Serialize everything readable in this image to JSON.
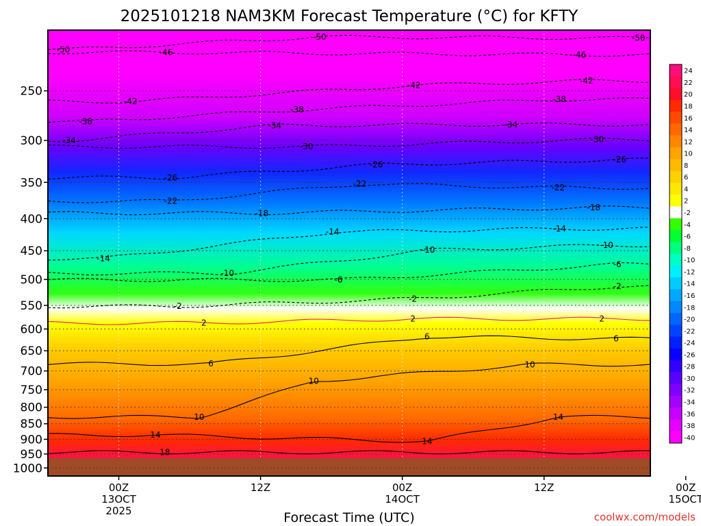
{
  "chart_data": {
    "type": "heatmap",
    "title": "2025101218 NAM3KM Forecast Temperature (°C) for KFTY",
    "xlabel": "Forecast Time (UTC)",
    "ylabel": "",
    "credit": "coolwx.com/models",
    "x_range_hours": [
      -6,
      45
    ],
    "y_range_hpa": [
      1030,
      200
    ],
    "x_ticks": [
      {
        "hour": 0,
        "line1": "00Z",
        "line2": "13OCT",
        "line3": "2025"
      },
      {
        "hour": 12,
        "line1": "12Z",
        "line2": "",
        "line3": ""
      },
      {
        "hour": 24,
        "line1": "00Z",
        "line2": "14OCT",
        "line3": ""
      },
      {
        "hour": 36,
        "line1": "12Z",
        "line2": "",
        "line3": ""
      },
      {
        "hour": 48,
        "line1": "00Z",
        "line2": "15OCT",
        "line3": ""
      }
    ],
    "y_ticks": [
      250,
      300,
      350,
      400,
      450,
      500,
      550,
      600,
      650,
      700,
      750,
      800,
      850,
      900,
      950,
      1000
    ],
    "colorbar": {
      "levels": [
        24,
        22,
        20,
        18,
        16,
        14,
        12,
        10,
        8,
        6,
        4,
        2,
        -2,
        -4,
        -6,
        -8,
        -10,
        -12,
        -14,
        -16,
        -18,
        -20,
        -22,
        -24,
        -26,
        -28,
        -30,
        -32,
        -34,
        -36,
        -38,
        -40
      ],
      "colors": [
        "#ff0d7a",
        "#ff0d55",
        "#ff0d2a",
        "#ff2a00",
        "#ff4a00",
        "#ff6800",
        "#ff8700",
        "#ffa400",
        "#ffba00",
        "#ffd100",
        "#ffe800",
        "#ffff00",
        "#ffffff",
        "#33ff00",
        "#00ff33",
        "#00ff80",
        "#00ffc4",
        "#00f0ff",
        "#00ccff",
        "#00a8ff",
        "#0088ff",
        "#0066ff",
        "#0044ff",
        "#0022ff",
        "#0a00ff",
        "#3300ff",
        "#5a00ff",
        "#7f00ff",
        "#a300ff",
        "#c800ff",
        "#e600ff",
        "#ff00ff"
      ]
    },
    "contour_labels": [
      {
        "label": "-50",
        "hour": -4.7,
        "hpa": 215
      },
      {
        "label": "-50",
        "hour": 17,
        "hpa": 205
      },
      {
        "label": "-50",
        "hour": 44,
        "hpa": 206
      },
      {
        "label": "-46",
        "hour": 4,
        "hpa": 217
      },
      {
        "label": "-46",
        "hour": 39,
        "hpa": 219
      },
      {
        "label": "-42",
        "hour": 1,
        "hpa": 260
      },
      {
        "label": "-42",
        "hour": 25,
        "hpa": 245
      },
      {
        "label": "-42",
        "hour": 39.6,
        "hpa": 241
      },
      {
        "label": "-38",
        "hour": -2.8,
        "hpa": 280
      },
      {
        "label": "-38",
        "hour": 15.1,
        "hpa": 268
      },
      {
        "label": "-38",
        "hour": 37.3,
        "hpa": 258
      },
      {
        "label": "-34",
        "hour": -4.2,
        "hpa": 300
      },
      {
        "label": "-34",
        "hour": 13.2,
        "hpa": 284
      },
      {
        "label": "-34",
        "hour": 33.2,
        "hpa": 283
      },
      {
        "label": "-30",
        "hour": 15.9,
        "hpa": 307
      },
      {
        "label": "-30",
        "hour": 40.5,
        "hpa": 299
      },
      {
        "label": "-26",
        "hour": 4.4,
        "hpa": 344
      },
      {
        "label": "-26",
        "hour": 21.8,
        "hpa": 328
      },
      {
        "label": "-26",
        "hour": 42.4,
        "hpa": 322
      },
      {
        "label": "-22",
        "hour": 4.4,
        "hpa": 375
      },
      {
        "label": "-22",
        "hour": 20.4,
        "hpa": 352
      },
      {
        "label": "-22",
        "hour": 37.2,
        "hpa": 357
      },
      {
        "label": "-18",
        "hour": 12.1,
        "hpa": 392
      },
      {
        "label": "-18",
        "hour": 40.2,
        "hpa": 384
      },
      {
        "label": "-14",
        "hour": -1.3,
        "hpa": 463
      },
      {
        "label": "-14",
        "hour": 18.1,
        "hpa": 420
      },
      {
        "label": "-14",
        "hour": 37.3,
        "hpa": 415
      },
      {
        "label": "-10",
        "hour": 9.2,
        "hpa": 489
      },
      {
        "label": "-10",
        "hour": 26.2,
        "hpa": 449
      },
      {
        "label": "-10",
        "hour": 41.3,
        "hpa": 441
      },
      {
        "label": "-6",
        "hour": 18.6,
        "hpa": 501
      },
      {
        "label": "-6",
        "hour": 42.2,
        "hpa": 473
      },
      {
        "label": "-2",
        "hour": 5,
        "hpa": 552
      },
      {
        "label": "-2",
        "hour": 24.9,
        "hpa": 537
      },
      {
        "label": "-2",
        "hour": 42.2,
        "hpa": 513
      },
      {
        "label": "2",
        "hour": 7.2,
        "hpa": 587
      },
      {
        "label": "2",
        "hour": 24.9,
        "hpa": 578
      },
      {
        "label": "2",
        "hour": 40.9,
        "hpa": 578
      },
      {
        "label": "6",
        "hour": 26.1,
        "hpa": 617
      },
      {
        "label": "6",
        "hour": 42.1,
        "hpa": 622
      },
      {
        "label": "6",
        "hour": 7.8,
        "hpa": 682
      },
      {
        "label": "10",
        "hour": 34.8,
        "hpa": 684
      },
      {
        "label": "10",
        "hour": 16.5,
        "hpa": 727
      },
      {
        "label": "10",
        "hour": 6.8,
        "hpa": 829
      },
      {
        "label": "14",
        "hour": 3.1,
        "hpa": 886
      },
      {
        "label": "14",
        "hour": 26.1,
        "hpa": 907
      },
      {
        "label": "14",
        "hour": 37.2,
        "hpa": 829
      },
      {
        "label": "18",
        "hour": 3.9,
        "hpa": 944
      }
    ]
  }
}
